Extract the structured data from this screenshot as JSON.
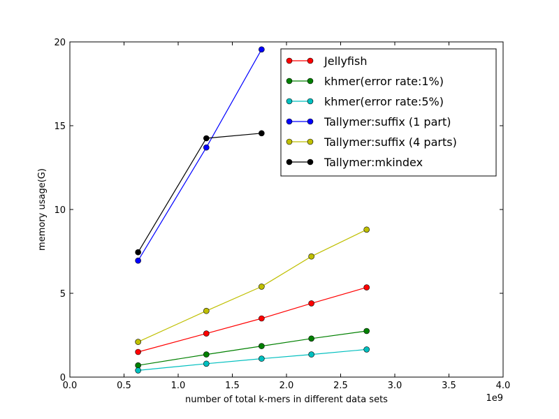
{
  "chart_data": {
    "type": "line",
    "title": "",
    "xlabel": "number of total k-mers in different data sets",
    "ylabel": "memory usage(G)",
    "x_offset_label": "1e9",
    "xlim": [
      0.0,
      4.0
    ],
    "ylim": [
      0,
      20
    ],
    "x_ticks": [
      0.0,
      0.5,
      1.0,
      1.5,
      2.0,
      2.5,
      3.0,
      3.5,
      4.0
    ],
    "x_tick_labels": [
      "0.0",
      "0.5",
      "1.0",
      "1.5",
      "2.0",
      "2.5",
      "3.0",
      "3.5",
      "4.0"
    ],
    "y_ticks": [
      0,
      5,
      10,
      15,
      20
    ],
    "y_tick_labels": [
      "0",
      "5",
      "10",
      "15",
      "20"
    ],
    "grid": false,
    "legend_position": "top-right",
    "series": [
      {
        "name": "Jellyfish",
        "color": "#ff0000",
        "x": [
          0.63,
          1.26,
          1.77,
          2.23,
          2.74
        ],
        "y": [
          1.5,
          2.6,
          3.5,
          4.4,
          5.35
        ]
      },
      {
        "name": "khmer(error rate:1%)",
        "color": "#008000",
        "x": [
          0.63,
          1.26,
          1.77,
          2.23,
          2.74
        ],
        "y": [
          0.7,
          1.35,
          1.85,
          2.3,
          2.75
        ]
      },
      {
        "name": "khmer(error rate:5%)",
        "color": "#00bfbf",
        "x": [
          0.63,
          1.26,
          1.77,
          2.23,
          2.74
        ],
        "y": [
          0.4,
          0.8,
          1.1,
          1.35,
          1.65
        ]
      },
      {
        "name": "Tallymer:suffix (1 part)",
        "color": "#0000ff",
        "x": [
          0.63,
          1.26,
          1.77
        ],
        "y": [
          6.95,
          13.7,
          19.55
        ]
      },
      {
        "name": "Tallymer:suffix (4 parts)",
        "color": "#bfbf00",
        "x": [
          0.63,
          1.26,
          1.77,
          2.23,
          2.74
        ],
        "y": [
          2.1,
          3.95,
          5.4,
          7.2,
          8.8
        ]
      },
      {
        "name": "Tallymer:mkindex",
        "color": "#000000",
        "x": [
          0.63,
          1.26,
          1.77
        ],
        "y": [
          7.45,
          14.25,
          14.55
        ]
      }
    ]
  }
}
